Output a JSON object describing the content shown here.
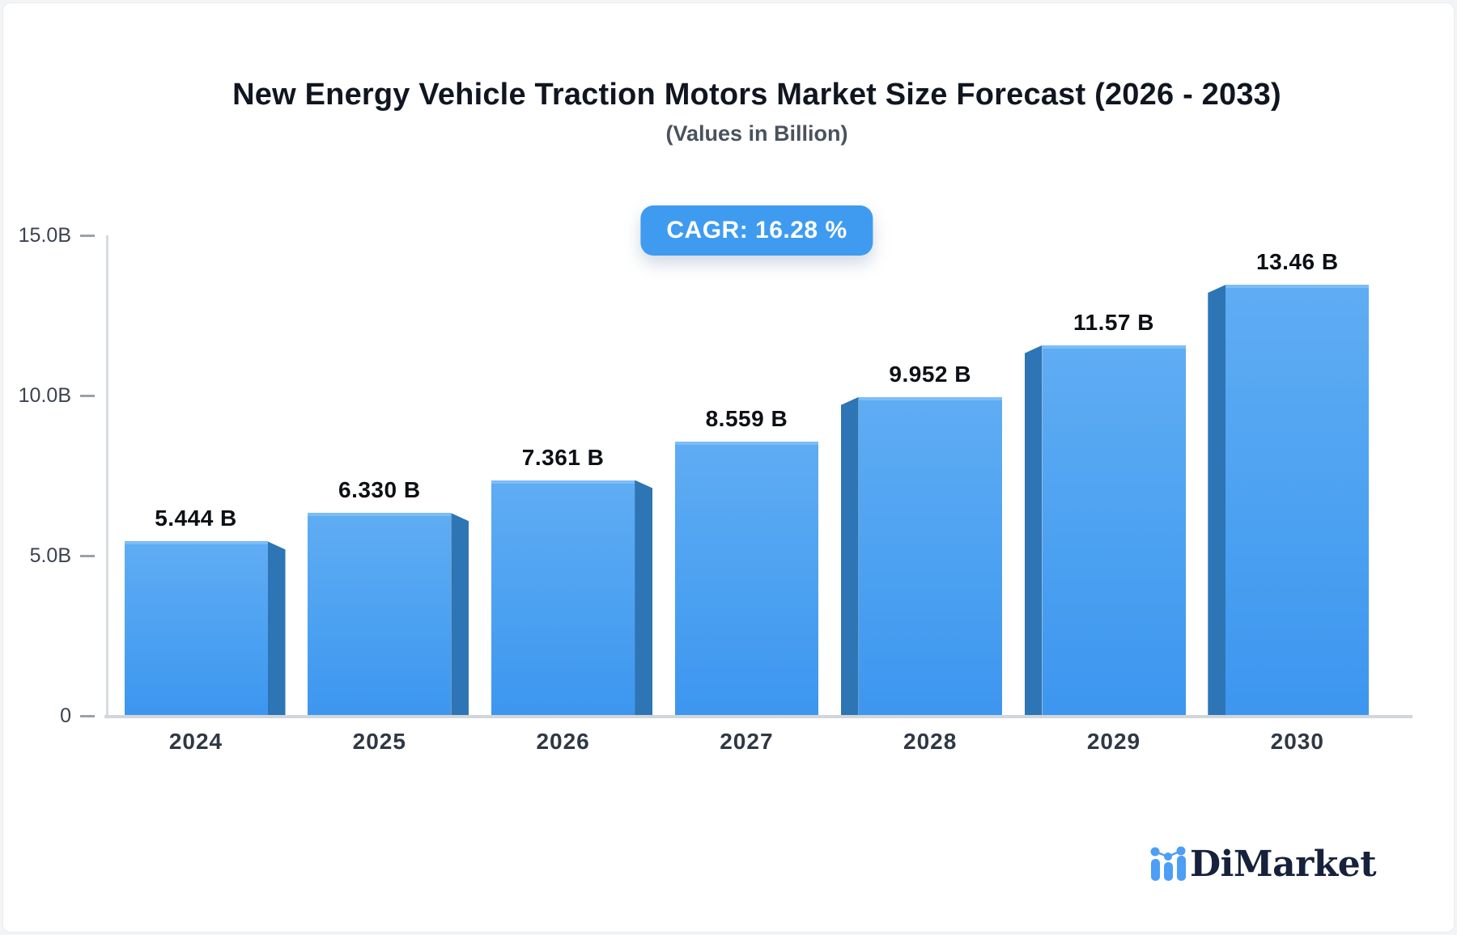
{
  "header": {
    "title": "New Energy Vehicle Traction Motors Market Size Forecast (2026 - 2033)",
    "subtitle": "(Values in Billion)",
    "cagr_badge": "CAGR: 16.28 %"
  },
  "chart_data": {
    "type": "bar",
    "title": "New Energy Vehicle Traction Motors Market Size Forecast (2026 - 2033)",
    "subtitle": "(Values in Billion)",
    "cagr_percent": 16.28,
    "categories": [
      "2024",
      "2025",
      "2026",
      "2027",
      "2028",
      "2029",
      "2030"
    ],
    "values": [
      5.444,
      6.33,
      7.361,
      8.559,
      9.952,
      11.57,
      13.46
    ],
    "value_labels": [
      "5.444 B",
      "6.330 B",
      "7.361 B",
      "8.559 B",
      "9.952 B",
      "11.57 B",
      "13.46 B"
    ],
    "y_axis": {
      "range": [
        0,
        15
      ],
      "ticks": [
        {
          "label": "15.0B",
          "value": 15
        },
        {
          "label": "10.0B",
          "value": 10
        },
        {
          "label": "5.0B",
          "value": 5
        },
        {
          "label": "0",
          "value": 0
        }
      ]
    },
    "grid": false,
    "legend": null,
    "style_3d": "perspective side faces toward center bar",
    "colors": {
      "bar_gradient_top": "#5FACF3",
      "bar_gradient_bottom": "#3D96EF",
      "bar_top_edge": "#7CBDF6",
      "bar_side_face": "#2E75B5",
      "badge_bg": "#3F9BF0",
      "axis_line": "#D7DADF",
      "tick_text": "#3B4350",
      "x_label_text": "#2F3845",
      "value_text": "#0D1014"
    }
  },
  "footer": {
    "brand": "DiMarket"
  }
}
